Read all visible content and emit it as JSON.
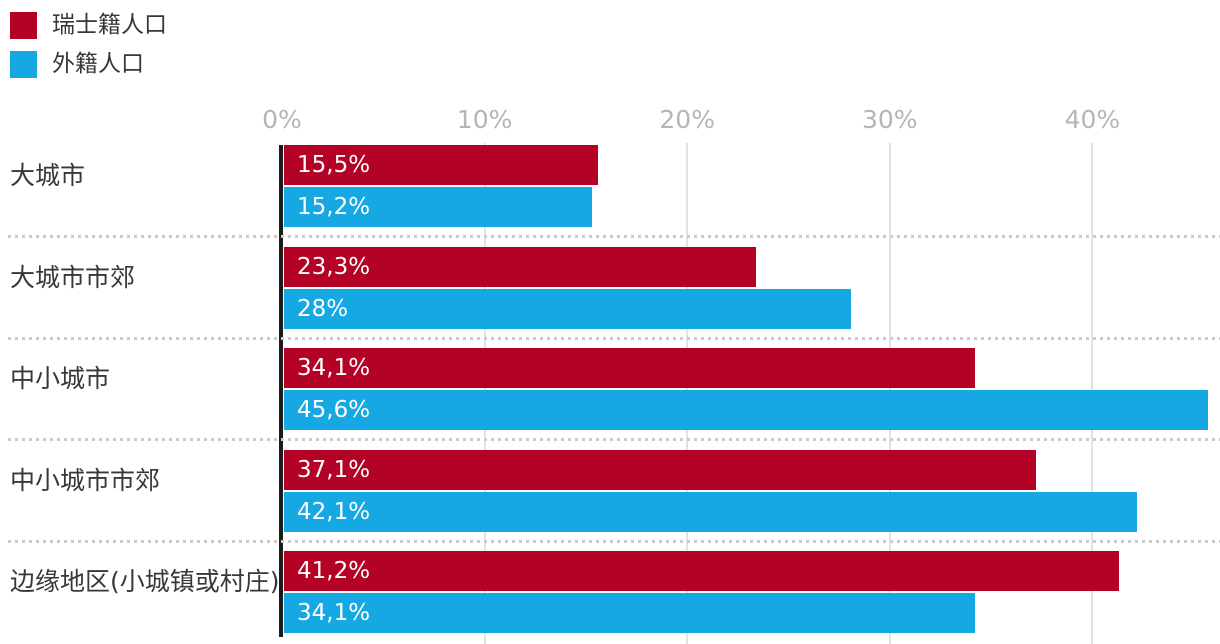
{
  "legend": {
    "items": [
      {
        "label": "瑞士籍人口",
        "color": "#b40227",
        "swatch": "red-square-swatch"
      },
      {
        "label": "外籍人口",
        "color": "#16a8e3",
        "swatch": "blue-square-swatch"
      }
    ]
  },
  "chart_data": {
    "type": "bar",
    "orientation": "horizontal",
    "title": "",
    "xlabel": "",
    "ylabel": "",
    "categories": [
      "大城市",
      "大城市市郊",
      "中小城市",
      "中小城市市郊",
      "边缘地区(小城镇或村庄)"
    ],
    "series": [
      {
        "name": "瑞士籍人口",
        "color": "#b40227",
        "values": [
          15.5,
          23.3,
          34.1,
          37.1,
          41.2
        ],
        "value_labels": [
          "15,5%",
          "23,3%",
          "34,1%",
          "37,1%",
          "41,2%"
        ]
      },
      {
        "name": "外籍人口",
        "color": "#16a8e3",
        "values": [
          15.2,
          28,
          45.6,
          42.1,
          34.1
        ],
        "value_labels": [
          "15,2%",
          "28%",
          "45,6%",
          "42,1%",
          "34,1%"
        ]
      }
    ],
    "x_axis": {
      "tick_labels": [
        "0%",
        "10%",
        "20%",
        "30%",
        "40%"
      ],
      "tick_values": [
        0,
        10,
        20,
        30,
        40
      ],
      "range": [
        0,
        46.2
      ],
      "unit": "%"
    },
    "grid": true,
    "legend_position": "top-left",
    "colors": {
      "grid_line": "#e2e2e2",
      "axis_line": "#1b1b1b",
      "tick_label": "#b5b5b5",
      "category_label": "#383838",
      "separator": "#cbcbcb",
      "bar_value_text": "#ffffff"
    }
  }
}
